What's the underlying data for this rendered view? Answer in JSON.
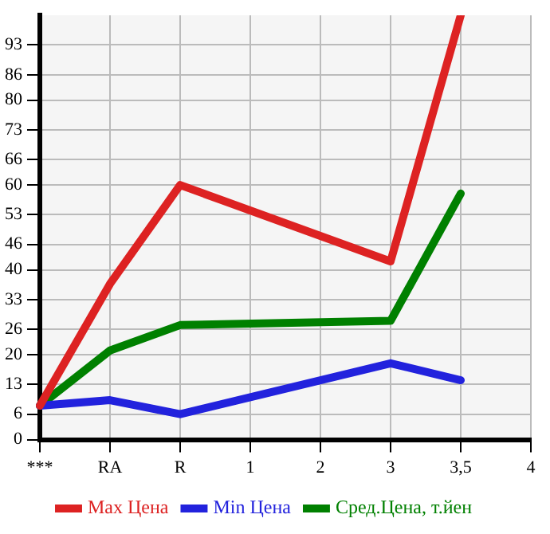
{
  "chart_data": {
    "type": "line",
    "categories": [
      "***",
      "RA",
      "R",
      "1",
      "2",
      "3",
      "3,5",
      "4"
    ],
    "series": [
      {
        "name": "Max Цена",
        "color": "#dd2222",
        "values": [
          8,
          36.7,
          60,
          null,
          null,
          42,
          100,
          null
        ]
      },
      {
        "name": "Min Цена",
        "color": "#2222dd",
        "values": [
          8,
          9.3,
          6,
          null,
          null,
          18,
          14,
          null
        ]
      },
      {
        "name": "Сред.Цена, т.йен",
        "color": "#008000",
        "values": [
          8,
          21,
          27,
          null,
          null,
          28,
          58,
          null
        ]
      }
    ],
    "ylim": [
      0,
      100
    ],
    "yticks": [
      0,
      6,
      13,
      20,
      26,
      33,
      40,
      46,
      53,
      60,
      66,
      73,
      80,
      86,
      93
    ],
    "grid": true,
    "legend": "bottom",
    "marker": "none",
    "line_style": "solid"
  }
}
